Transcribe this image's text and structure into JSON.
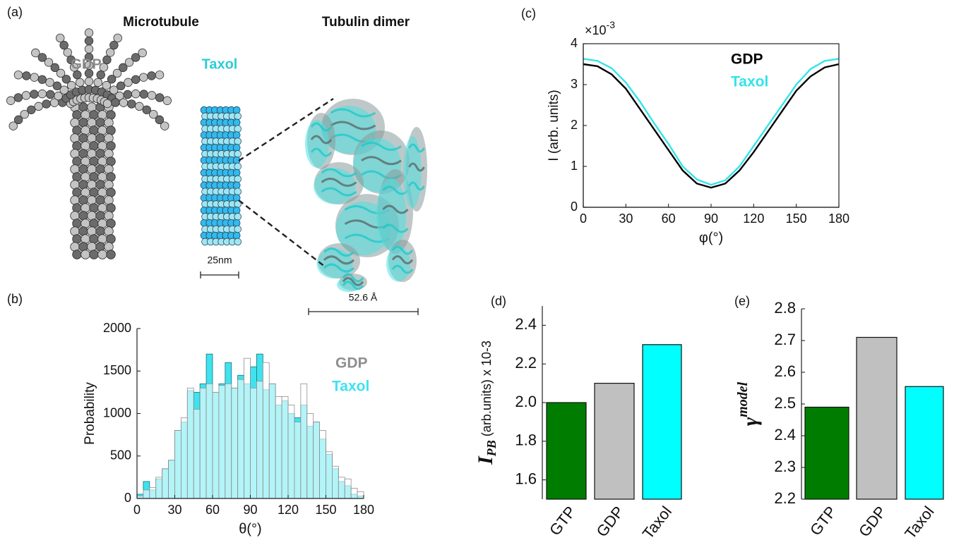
{
  "panel_a": {
    "label": "(a)",
    "title_left": "Microtubule",
    "title_right": "Tubulin dimer",
    "gdp_label": "GDP",
    "taxol_label": "Taxol",
    "scale_bar_left": "25nm",
    "scale_bar_right": "52.6 Å"
  },
  "chart_data": [
    {
      "type": "histogram",
      "panel_label": "(b)",
      "xlabel": "θ(°)",
      "ylabel": "Probability",
      "bins": [
        0,
        5,
        10,
        15,
        20,
        25,
        30,
        35,
        40,
        45,
        50,
        55,
        60,
        65,
        70,
        75,
        80,
        85,
        90,
        95,
        100,
        105,
        110,
        115,
        120,
        125,
        130,
        135,
        140,
        145,
        150,
        155,
        160,
        165,
        170,
        175,
        180
      ],
      "xlim": [
        0,
        180
      ],
      "xticks": [
        0,
        30,
        60,
        90,
        120,
        150,
        180
      ],
      "ylim": [
        0,
        2000
      ],
      "yticks": [
        0,
        500,
        1000,
        1500,
        2000
      ],
      "series": [
        {
          "name": "Taxol",
          "color": "#3fe3ee",
          "values": [
            50,
            200,
            100,
            230,
            350,
            450,
            800,
            900,
            1270,
            1250,
            1350,
            1700,
            1250,
            1350,
            1600,
            1300,
            1450,
            1350,
            1550,
            1700,
            1280,
            1350,
            1100,
            1150,
            1000,
            950,
            1100,
            850,
            900,
            700,
            520,
            350,
            200,
            150,
            50,
            30
          ]
        },
        {
          "name": "GDP",
          "color": "#8f8f8f",
          "values": [
            30,
            100,
            130,
            250,
            350,
            450,
            800,
            950,
            1300,
            1050,
            1300,
            1350,
            1250,
            1330,
            1350,
            1300,
            1400,
            1650,
            1300,
            1380,
            1600,
            1350,
            1200,
            1200,
            1100,
            900,
            1350,
            1000,
            900,
            800,
            550,
            380,
            250,
            230,
            120,
            80
          ]
        }
      ]
    },
    {
      "type": "line",
      "panel_label": "(c)",
      "xlabel": "φ(°)",
      "ylabel": "I (arb. units)",
      "y_multiplier": "×10",
      "y_multiplier_exponent": "-3",
      "x": [
        0,
        10,
        20,
        30,
        40,
        50,
        60,
        70,
        80,
        90,
        100,
        110,
        120,
        130,
        140,
        150,
        160,
        170,
        180
      ],
      "xlim": [
        0,
        180
      ],
      "xticks": [
        0,
        30,
        60,
        90,
        120,
        150,
        180
      ],
      "ylim": [
        0,
        4
      ],
      "yticks": [
        0,
        1,
        2,
        3,
        4
      ],
      "series": [
        {
          "name": "GDP",
          "color": "#000000",
          "values": [
            3.5,
            3.45,
            3.25,
            2.9,
            2.4,
            1.9,
            1.4,
            0.9,
            0.58,
            0.48,
            0.58,
            0.9,
            1.35,
            1.85,
            2.35,
            2.85,
            3.2,
            3.42,
            3.5
          ]
        },
        {
          "name": "Taxol",
          "color": "#33e3ea",
          "values": [
            3.63,
            3.58,
            3.4,
            3.05,
            2.58,
            2.05,
            1.55,
            1.0,
            0.68,
            0.55,
            0.66,
            1.0,
            1.5,
            2.0,
            2.5,
            3.0,
            3.38,
            3.58,
            3.63
          ]
        }
      ]
    },
    {
      "type": "bar",
      "panel_label": "(d)",
      "ylabel_main": "I",
      "ylabel_sub": "PB",
      "ylabel_rest": " (arb.units) x 10-3",
      "categories": [
        "GTP",
        "GDP",
        "Taxol"
      ],
      "values": [
        2.0,
        2.1,
        2.3
      ],
      "colors": [
        "#007d00",
        "#c0c0c0",
        "#00ffff"
      ],
      "ylim": [
        1.5,
        2.5
      ],
      "yticks": [
        1.6,
        1.8,
        {
          "value": 2,
          "label": "2.0"
        },
        2.2,
        2.4
      ]
    },
    {
      "type": "bar",
      "panel_label": "(e)",
      "ylabel_main": "γ",
      "ylabel_sup": "model",
      "categories": [
        "GTP",
        "GDP",
        "Taxol"
      ],
      "values": [
        2.49,
        2.71,
        2.555
      ],
      "colors": [
        "#007d00",
        "#c0c0c0",
        "#00ffff"
      ],
      "ylim": [
        2.2,
        2.8
      ],
      "yticks": [
        2.2,
        2.3,
        2.4,
        2.5,
        2.6,
        2.7,
        2.8
      ]
    }
  ]
}
